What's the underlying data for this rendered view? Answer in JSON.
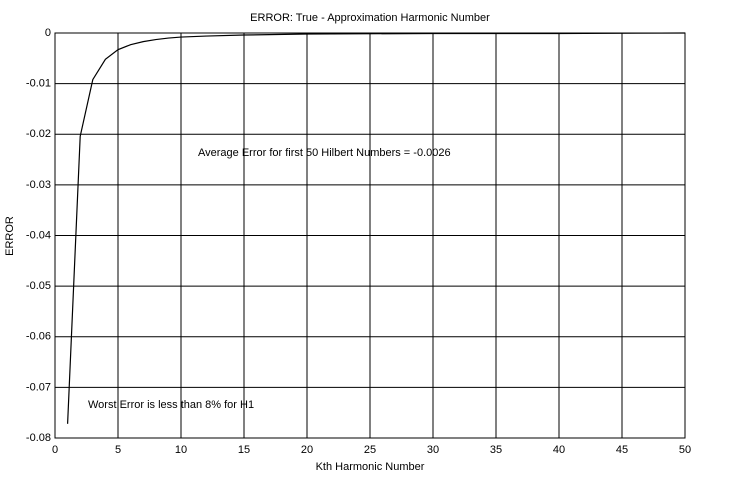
{
  "chart_data": {
    "type": "line",
    "title": "ERROR:  True - Approximation Harmonic Number",
    "x_label": "Kth Harmonic Number",
    "y_label": "ERROR",
    "annotations": [
      "Average Error for first 50 Hilbert Numbers = -0.0026",
      "Worst Error is less than 8% for H1"
    ],
    "x": [
      1,
      2,
      3,
      4,
      5,
      6,
      7,
      8,
      9,
      10,
      12,
      15,
      20,
      30,
      40,
      50
    ],
    "series": [
      {
        "color": "#000000",
        "values": [
          -0.0772,
          -0.0204,
          -0.0092,
          -0.0052,
          -0.0033,
          -0.0023,
          -0.0017,
          -0.0013,
          -0.001,
          -0.0008,
          -0.0006,
          -0.0004,
          -0.0002,
          -0.0001,
          -0.0001,
          0
        ]
      }
    ],
    "xlim": [
      0,
      50
    ],
    "xticks": [
      0,
      5,
      10,
      15,
      20,
      25,
      30,
      35,
      40,
      45,
      50
    ],
    "ylim": [
      -0.08,
      0
    ],
    "yticks": [
      0,
      -0.01,
      -0.02,
      -0.03,
      -0.04,
      -0.05,
      -0.06,
      -0.07,
      -0.08
    ],
    "grid": true
  }
}
